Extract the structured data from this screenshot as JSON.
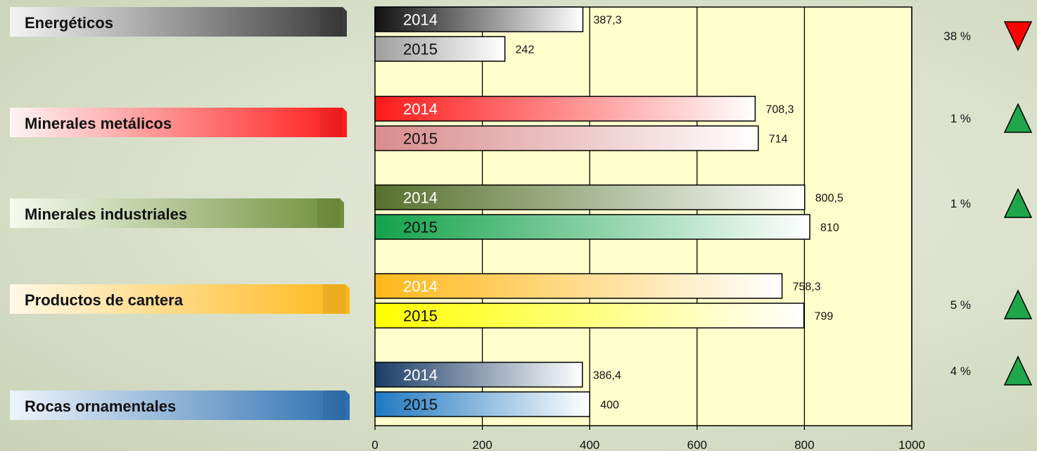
{
  "chart_data": {
    "type": "bar",
    "orientation": "horizontal",
    "categories": [
      "Energéticos",
      "Minerales metálicos",
      "Minerales industriales",
      "Productos de cantera",
      "Rocas ornamentales"
    ],
    "series": [
      {
        "name": "2014",
        "values": [
          387.3,
          708.3,
          800.5,
          758.3,
          386.4
        ],
        "labels": [
          "387,3",
          "708,3",
          "800,5",
          "758,3",
          "386,4"
        ]
      },
      {
        "name": "2015",
        "values": [
          242,
          714,
          810,
          799,
          400
        ],
        "labels": [
          "242",
          "714",
          "810",
          "799",
          "400"
        ]
      }
    ],
    "changes": [
      {
        "label": "38 %",
        "direction": "down",
        "color": "#ff0000"
      },
      {
        "label": "1 %",
        "direction": "up",
        "color": "#1fa64a"
      },
      {
        "label": "1 %",
        "direction": "up",
        "color": "#1fa64a"
      },
      {
        "label": "5 %",
        "direction": "up",
        "color": "#1fa64a"
      },
      {
        "label": "4 %",
        "direction": "up",
        "color": "#1fa64a"
      }
    ],
    "xlim": [
      0,
      1000
    ],
    "xticks": [
      0,
      200,
      400,
      600,
      800,
      1000
    ],
    "grid": "vertical",
    "plot_background": "#ffffcc",
    "category_colors": [
      {
        "banner": [
          "#3a3a3a",
          "#f4f4f4"
        ],
        "bar2014": [
          "#111111",
          "#ffffff"
        ],
        "bar2015": [
          "#9e9e9e",
          "#ffffff"
        ],
        "text2014": "#ffffff",
        "text2015": "#111111"
      },
      {
        "banner": [
          "#ff1a1a",
          "#fff4f4"
        ],
        "bar2014": [
          "#ff1a1a",
          "#ffffff"
        ],
        "bar2015": [
          "#d98c8c",
          "#ffffff"
        ],
        "text2014": "#ffffff",
        "text2015": "#111111"
      },
      {
        "banner": [
          "#6f8f3a",
          "#f6faee"
        ],
        "bar2014": [
          "#56702c",
          "#ffffff"
        ],
        "bar2015": [
          "#13a24a",
          "#ffffff"
        ],
        "text2014": "#ffffff",
        "text2015": "#111111"
      },
      {
        "banner": [
          "#ffb81a",
          "#fff8e6"
        ],
        "bar2014": [
          "#ffb81a",
          "#ffffff"
        ],
        "bar2015": [
          "#ffff00",
          "#ffffff"
        ],
        "text2014": "#ffffff",
        "text2015": "#111111"
      },
      {
        "banner": [
          "#2c6fb0",
          "#eef4fb"
        ],
        "bar2014": [
          "#1b3d66",
          "#ffffff"
        ],
        "bar2015": [
          "#1f78c0",
          "#ffffff"
        ],
        "text2014": "#ffffff",
        "text2015": "#111111"
      }
    ]
  }
}
